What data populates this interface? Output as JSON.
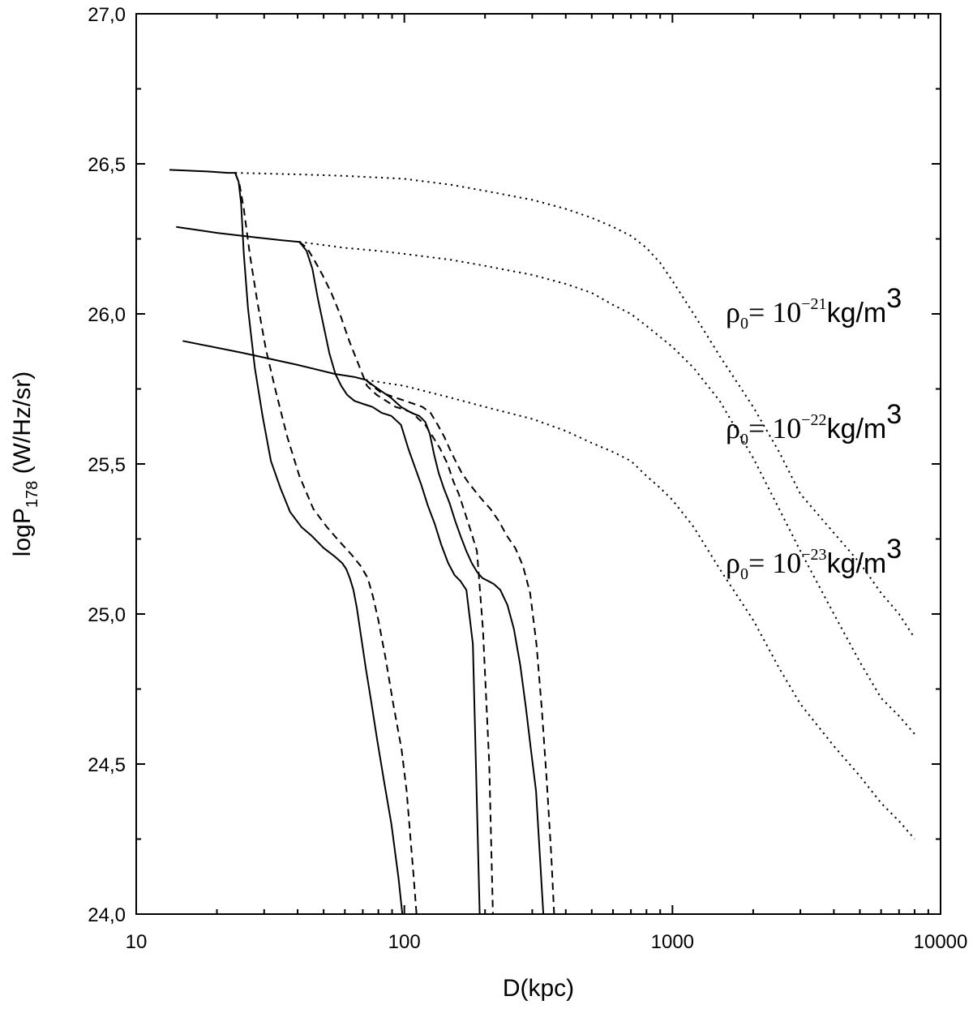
{
  "chart_data": {
    "type": "line",
    "title": "",
    "xlabel": "D(kpc)",
    "ylabel": {
      "main": "logP",
      "subscript": "178",
      "unit": " (W/Hz/sr)"
    },
    "x_scale": "log",
    "xlim": [
      10,
      10000
    ],
    "ylim": [
      24.0,
      27.0
    ],
    "x_ticks": [
      {
        "value": 10,
        "label": "10"
      },
      {
        "value": 100,
        "label": "100"
      },
      {
        "value": 1000,
        "label": "1000"
      },
      {
        "value": 10000,
        "label": "10000"
      }
    ],
    "y_ticks": [
      {
        "value": 24.0,
        "label": "24,0"
      },
      {
        "value": 24.5,
        "label": "24,5"
      },
      {
        "value": 25.0,
        "label": "25,0"
      },
      {
        "value": 25.5,
        "label": "25,5"
      },
      {
        "value": 26.0,
        "label": "26,0"
      },
      {
        "value": 26.5,
        "label": "26,5"
      },
      {
        "value": 27.0,
        "label": "27,0"
      }
    ],
    "grid": false,
    "legend": "none",
    "line_color": "#000000",
    "series": [
      {
        "style": "solid",
        "x": [
          13.3,
          18,
          22,
          23.4,
          24.1,
          24.6,
          25.2,
          26.1,
          27.7,
          29.6,
          31.8,
          34.5,
          37.5,
          41.3,
          45.2,
          50,
          55.3,
          58.6,
          60.7,
          62.6,
          64.6,
          66.5,
          69.1,
          71.8,
          75.5,
          79.2,
          84.1,
          89.5,
          95.1,
          98.3
        ],
        "y": [
          26.48,
          26.475,
          26.47,
          26.47,
          26.44,
          26.37,
          26.2,
          26.02,
          25.82,
          25.66,
          25.51,
          25.42,
          25.34,
          25.29,
          25.26,
          25.22,
          25.19,
          25.17,
          25.15,
          25.12,
          25.08,
          25.02,
          24.92,
          24.82,
          24.7,
          24.58,
          24.44,
          24.3,
          24.12,
          24.0
        ]
      },
      {
        "style": "dashed",
        "x": [
          23.4,
          24.3,
          25.2,
          26.5,
          28.3,
          30.5,
          33.2,
          36.6,
          40.6,
          45.8,
          51.4,
          57.5,
          63.2,
          68.7,
          73,
          76.3,
          80,
          85.2,
          90.9,
          97.6,
          102,
          105,
          108,
          111
        ],
        "y": [
          26.47,
          26.43,
          26.35,
          26.2,
          26.04,
          25.88,
          25.74,
          25.59,
          25.46,
          25.35,
          25.29,
          25.24,
          25.2,
          25.16,
          25.12,
          25.06,
          24.98,
          24.85,
          24.7,
          24.55,
          24.41,
          24.27,
          24.14,
          24.0
        ]
      },
      {
        "style": "solid",
        "x": [
          14.1,
          20,
          28,
          35,
          40.6,
          43.2,
          45.4,
          47.6,
          50,
          52.5,
          55.3,
          58.2,
          61.2,
          65.2,
          70.2,
          76,
          82.4,
          89.5,
          97.2,
          103.6,
          109.4,
          115.7,
          122.5,
          129.9,
          137.4,
          145.7,
          153.8,
          161.8,
          170.4,
          180.2,
          191
        ],
        "y": [
          26.29,
          26.27,
          26.255,
          26.245,
          26.24,
          26.21,
          26.15,
          26.05,
          25.96,
          25.87,
          25.8,
          25.76,
          25.73,
          25.71,
          25.7,
          25.69,
          25.67,
          25.66,
          25.63,
          25.55,
          25.49,
          25.43,
          25.36,
          25.3,
          25.23,
          25.17,
          25.13,
          25.11,
          25.08,
          24.9,
          24.0
        ]
      },
      {
        "style": "dashed",
        "x": [
          40.6,
          43.3,
          46.1,
          49.5,
          53.4,
          57.5,
          62.3,
          67.6,
          72.6,
          78.9,
          85.6,
          92.8,
          100.7,
          107.1,
          113,
          119.7,
          127.8,
          136.2,
          145,
          152.6,
          159.6,
          167.9,
          176.6,
          186.6,
          196.4,
          207.3,
          214
        ],
        "y": [
          26.24,
          26.22,
          26.18,
          26.13,
          26.07,
          26.0,
          25.91,
          25.83,
          25.76,
          25.73,
          25.71,
          25.69,
          25.68,
          25.67,
          25.65,
          25.63,
          25.59,
          25.55,
          25.5,
          25.44,
          25.4,
          25.34,
          25.28,
          25.21,
          24.95,
          24.5,
          24.0
        ]
      },
      {
        "style": "solid",
        "x": [
          14.9,
          25,
          40,
          55,
          65,
          71.9,
          77,
          82.9,
          89.3,
          97.3,
          106.4,
          113.7,
          119.7,
          124.5,
          129.2,
          134.3,
          140.2,
          147.4,
          154.8,
          162.1,
          170.3,
          178.4,
          186.8,
          195.5,
          205.5,
          215.6,
          228.2,
          242.3,
          256.3,
          270.5,
          283.8,
          296.5,
          309.8,
          320,
          330
        ],
        "y": [
          25.91,
          25.87,
          25.83,
          25.8,
          25.79,
          25.78,
          25.76,
          25.74,
          25.72,
          25.69,
          25.67,
          25.66,
          25.64,
          25.6,
          25.53,
          25.47,
          25.42,
          25.37,
          25.31,
          25.26,
          25.21,
          25.17,
          25.14,
          25.12,
          25.11,
          25.1,
          25.08,
          25.03,
          24.95,
          24.83,
          24.69,
          24.55,
          24.41,
          24.2,
          24.0
        ]
      },
      {
        "style": "dashed",
        "x": [
          71.9,
          76,
          81.3,
          86.9,
          93.3,
          100.7,
          108.7,
          116.8,
          125.3,
          133.3,
          141,
          147.6,
          155.2,
          163.8,
          172.7,
          183.4,
          195.4,
          209.6,
          225,
          241.6,
          259.3,
          277.1,
          294.6,
          311,
          325.8,
          340,
          352.9,
          362
        ],
        "y": [
          25.78,
          25.76,
          25.74,
          25.73,
          25.72,
          25.71,
          25.7,
          25.69,
          25.67,
          25.63,
          25.59,
          25.55,
          25.51,
          25.47,
          25.44,
          25.41,
          25.38,
          25.35,
          25.31,
          25.26,
          25.22,
          25.16,
          25.07,
          24.9,
          24.68,
          24.44,
          24.2,
          24.0
        ]
      },
      {
        "style": "dotted",
        "x": [
          23.4,
          40,
          60,
          100,
          150,
          200,
          300,
          400,
          500,
          600,
          700,
          800,
          900,
          1000,
          1200,
          1500,
          2000,
          2500,
          3000,
          4000,
          5000,
          6000,
          7000,
          8000
        ],
        "y": [
          26.47,
          26.465,
          26.46,
          26.45,
          26.43,
          26.41,
          26.38,
          26.35,
          26.32,
          26.29,
          26.26,
          26.22,
          26.17,
          26.11,
          26.0,
          25.86,
          25.69,
          25.54,
          25.4,
          25.27,
          25.17,
          25.07,
          25.0,
          24.92
        ]
      },
      {
        "style": "dotted",
        "x": [
          40.6,
          60,
          80,
          100,
          150,
          200,
          300,
          400,
          500,
          600,
          700,
          800,
          1000,
          1200,
          1500,
          2000,
          2500,
          3000,
          4000,
          5000,
          6000,
          7000,
          8000
        ],
        "y": [
          26.24,
          26.22,
          26.21,
          26.2,
          26.18,
          26.16,
          26.13,
          26.1,
          26.07,
          26.03,
          26.0,
          25.96,
          25.89,
          25.82,
          25.71,
          25.52,
          25.35,
          25.21,
          25.0,
          24.84,
          24.72,
          24.66,
          24.6
        ]
      },
      {
        "style": "dotted",
        "x": [
          71.9,
          100,
          150,
          200,
          300,
          400,
          500,
          600,
          700,
          800,
          900,
          1000,
          1200,
          1500,
          2000,
          2500,
          3000,
          4000,
          5000,
          6000,
          7000,
          8000
        ],
        "y": [
          25.78,
          25.76,
          25.72,
          25.69,
          25.65,
          25.61,
          25.57,
          25.54,
          25.51,
          25.46,
          25.42,
          25.38,
          25.29,
          25.15,
          24.98,
          24.82,
          24.7,
          24.56,
          24.46,
          24.37,
          24.31,
          24.25
        ]
      }
    ],
    "annotations": [
      {
        "symbol": "ρ",
        "subscript": "0",
        "text": "= 10",
        "superscript": "−21",
        "unit": "kg/m",
        "unit_superscript": "3"
      },
      {
        "symbol": "ρ",
        "subscript": "0",
        "text": "= 10",
        "superscript": "−22",
        "unit": "kg/m",
        "unit_superscript": "3"
      },
      {
        "symbol": "ρ",
        "subscript": "0",
        "text": "= 10",
        "superscript": "−23",
        "unit": "kg/m",
        "unit_superscript": "3"
      }
    ]
  }
}
